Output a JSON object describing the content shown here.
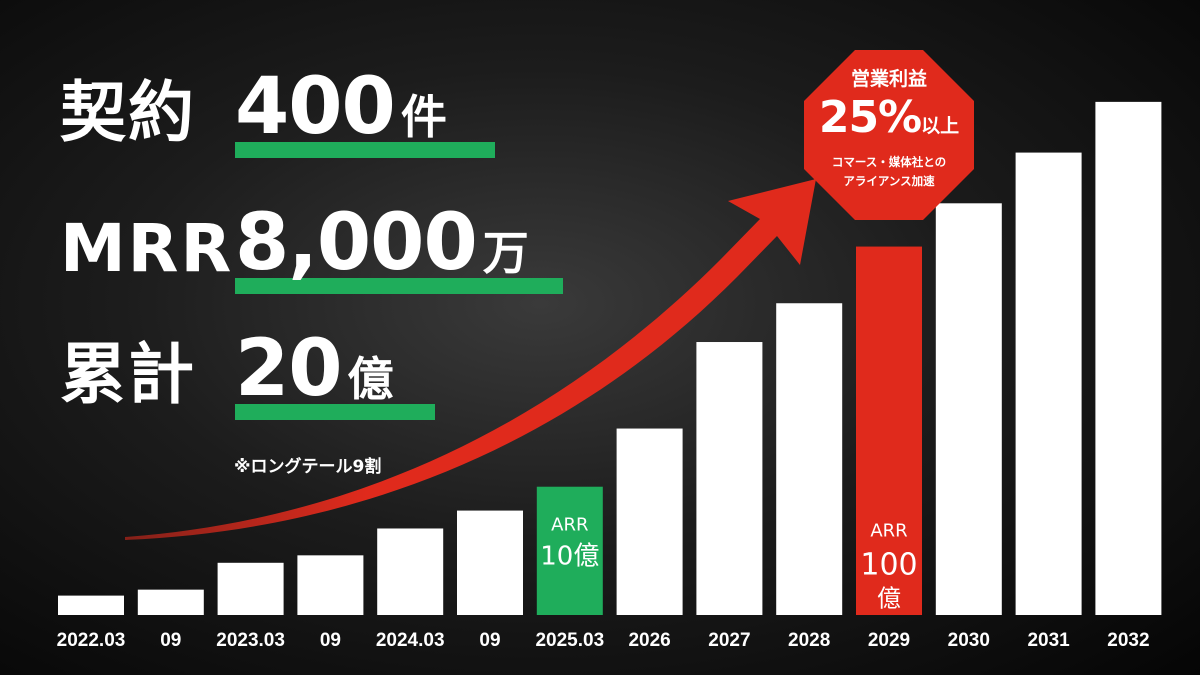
{
  "kpis": [
    {
      "label": "契約",
      "value": "400",
      "unit": "件"
    },
    {
      "label": "MRR",
      "value": "8,000",
      "unit": "万"
    },
    {
      "label": "累計",
      "value": "20",
      "unit": "億"
    }
  ],
  "note": "※ロングテール9割",
  "callout": {
    "title": "営業利益",
    "value": "25%",
    "suffix": "以上",
    "line1": "コマース・媒体社との",
    "line2": "アライアンス加速"
  },
  "colors": {
    "bar_default": "#ffffff",
    "bar_green": "#1fad5b",
    "bar_red": "#e02a1c",
    "arrow": "#e02a1c"
  },
  "chart_data": {
    "type": "bar",
    "categories": [
      "2022.03",
      "09",
      "2023.03",
      "09",
      "2024.03",
      "09",
      "2025.03",
      "2026",
      "2027",
      "2028",
      "2029",
      "2030",
      "2031",
      "2032"
    ],
    "values": [
      1.3,
      1.7,
      3.5,
      4.0,
      5.8,
      7.0,
      8.6,
      12.5,
      18.3,
      20.9,
      24.7,
      27.6,
      31.0,
      34.4
    ],
    "highlights": [
      {
        "index": 6,
        "color": "green",
        "labels": [
          "ARR",
          "10億"
        ]
      },
      {
        "index": 10,
        "color": "red",
        "labels": [
          "ARR",
          "100",
          "億"
        ]
      }
    ],
    "ylim": [
      0,
      36
    ]
  }
}
